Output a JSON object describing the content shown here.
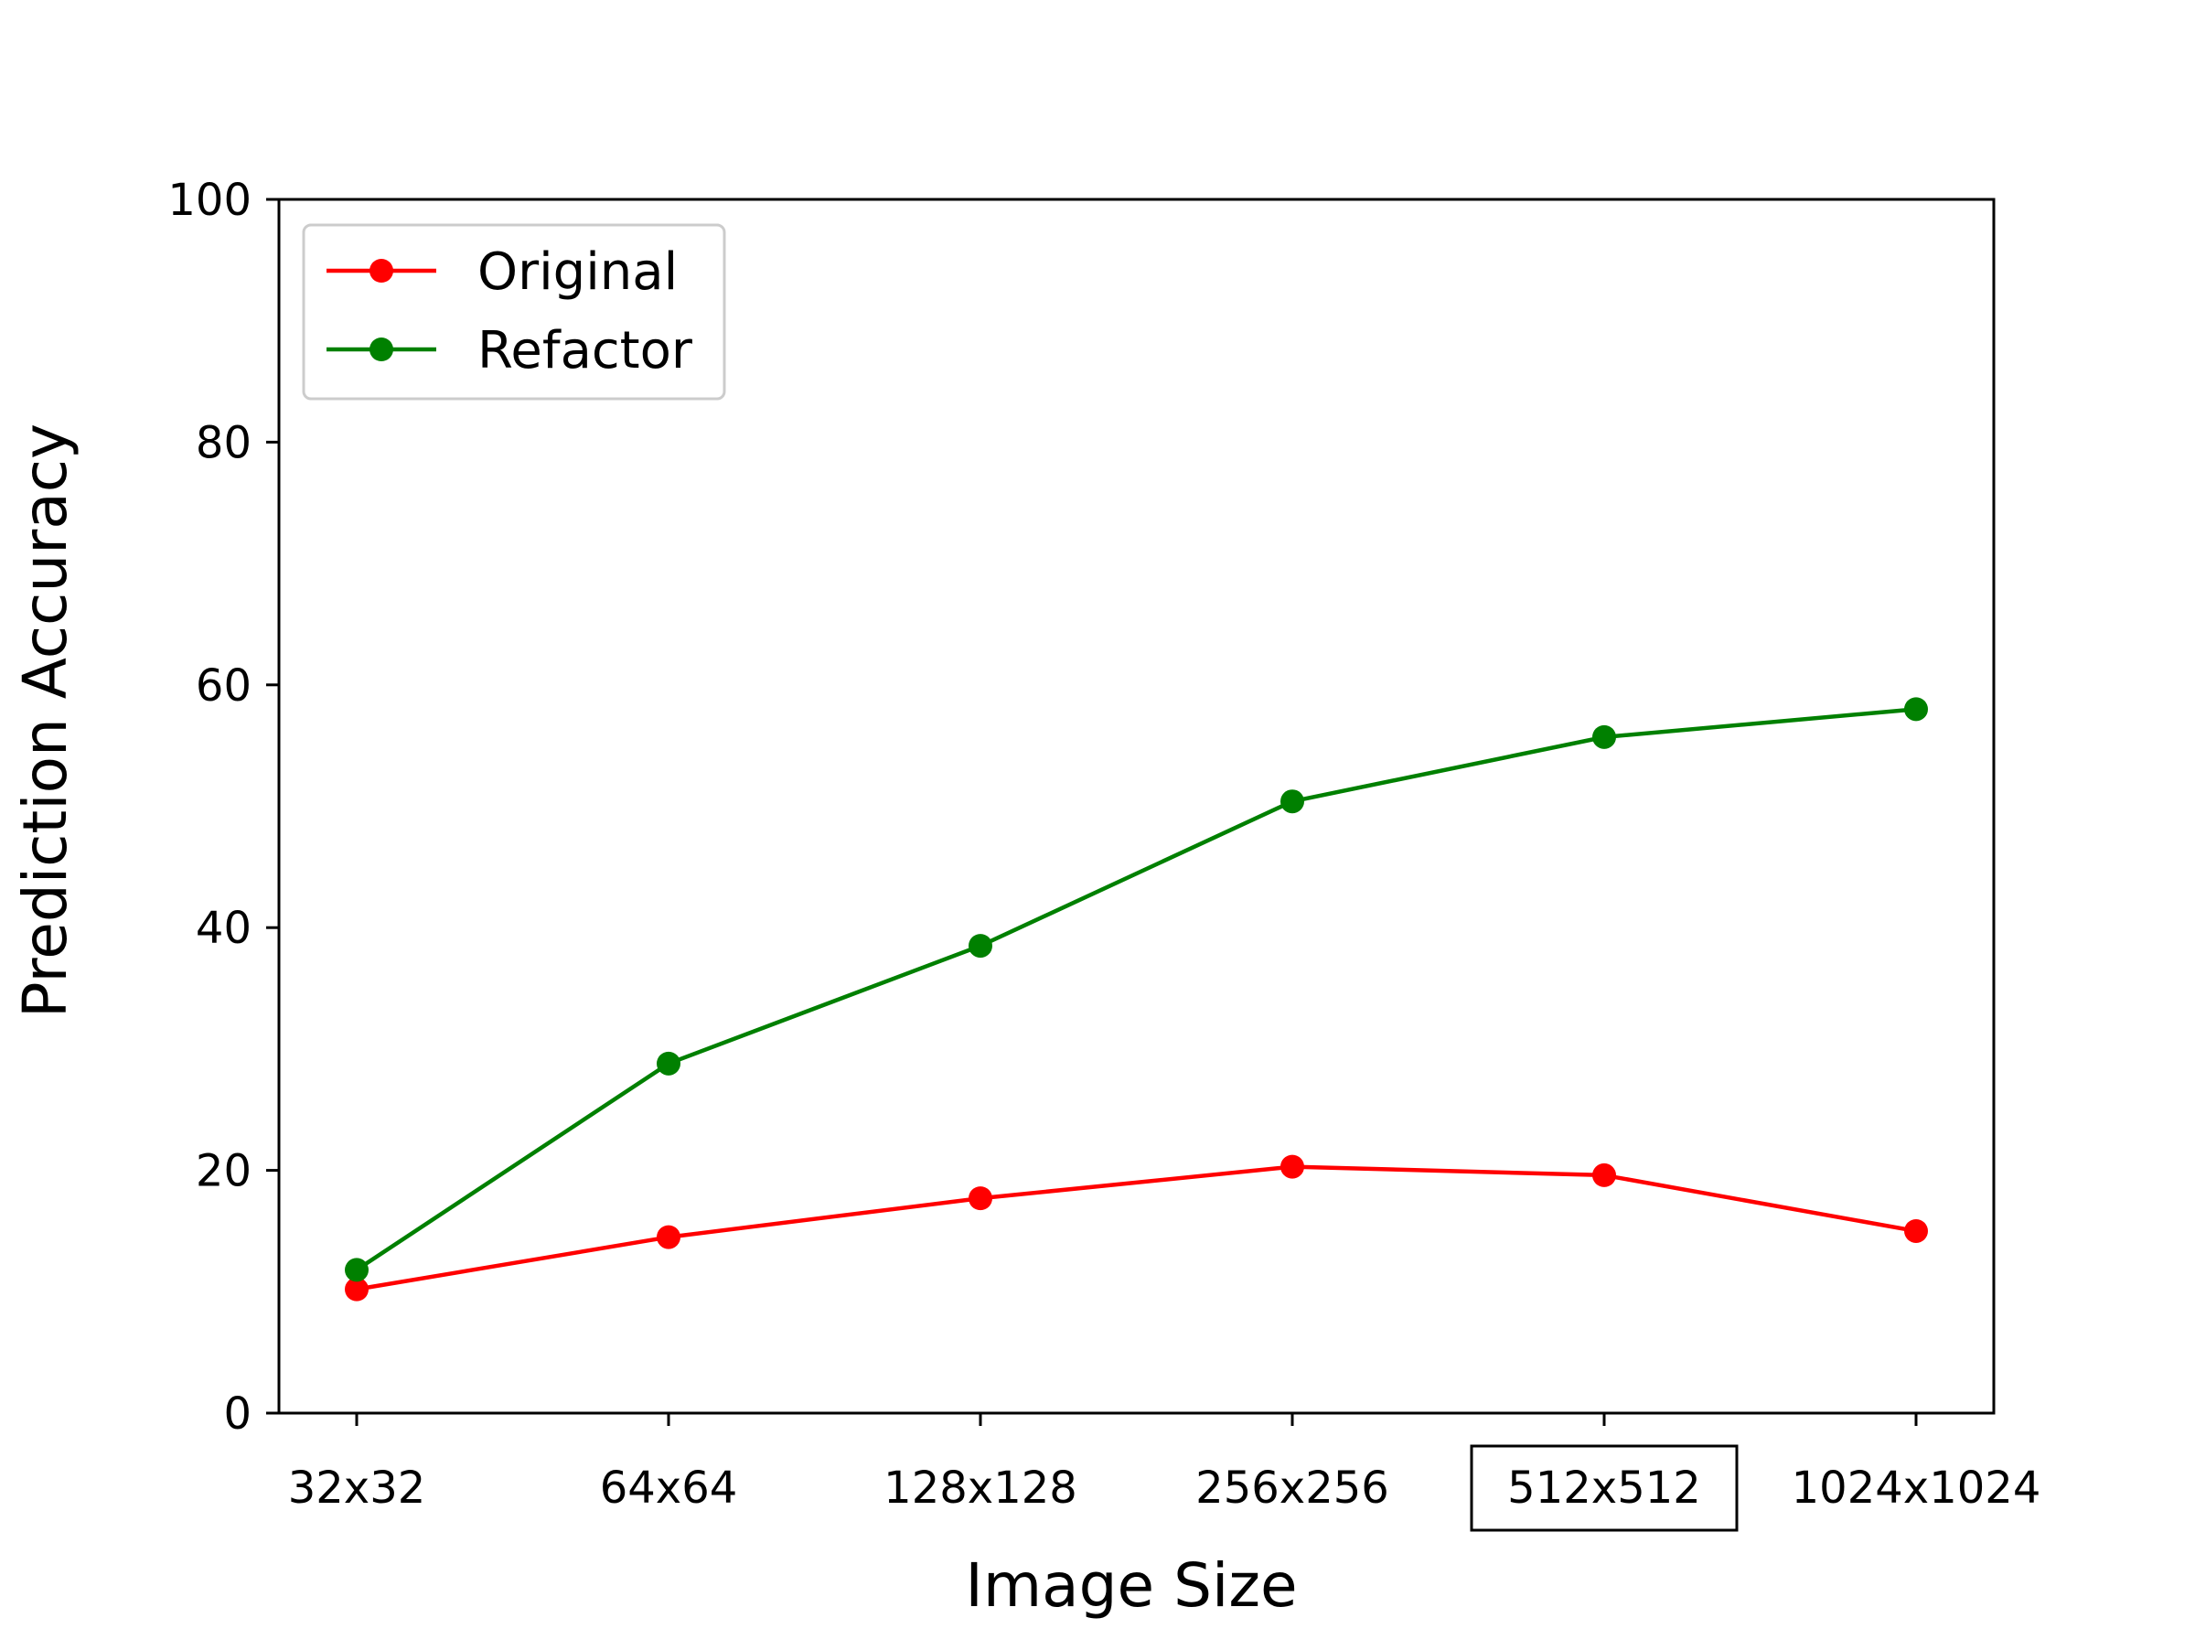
{
  "chart_data": {
    "type": "line",
    "title": "",
    "xlabel": "Image Size",
    "ylabel": "Prediction Accuracy",
    "categories": [
      "32x32",
      "64x64",
      "128x128",
      "256x256",
      "512x512",
      "1024x1024"
    ],
    "highlighted_category": "512x512",
    "ylim": [
      0,
      100
    ],
    "yticks": [
      0,
      20,
      40,
      60,
      80,
      100
    ],
    "grid": false,
    "legend_position": "top-left",
    "series": [
      {
        "name": "Original",
        "color": "#ff0000",
        "values": [
          10.2,
          14.5,
          17.7,
          20.3,
          19.6,
          15.0
        ]
      },
      {
        "name": "Refactor",
        "color": "#008000",
        "values": [
          11.8,
          28.8,
          38.5,
          50.4,
          55.7,
          58.0
        ]
      }
    ]
  }
}
